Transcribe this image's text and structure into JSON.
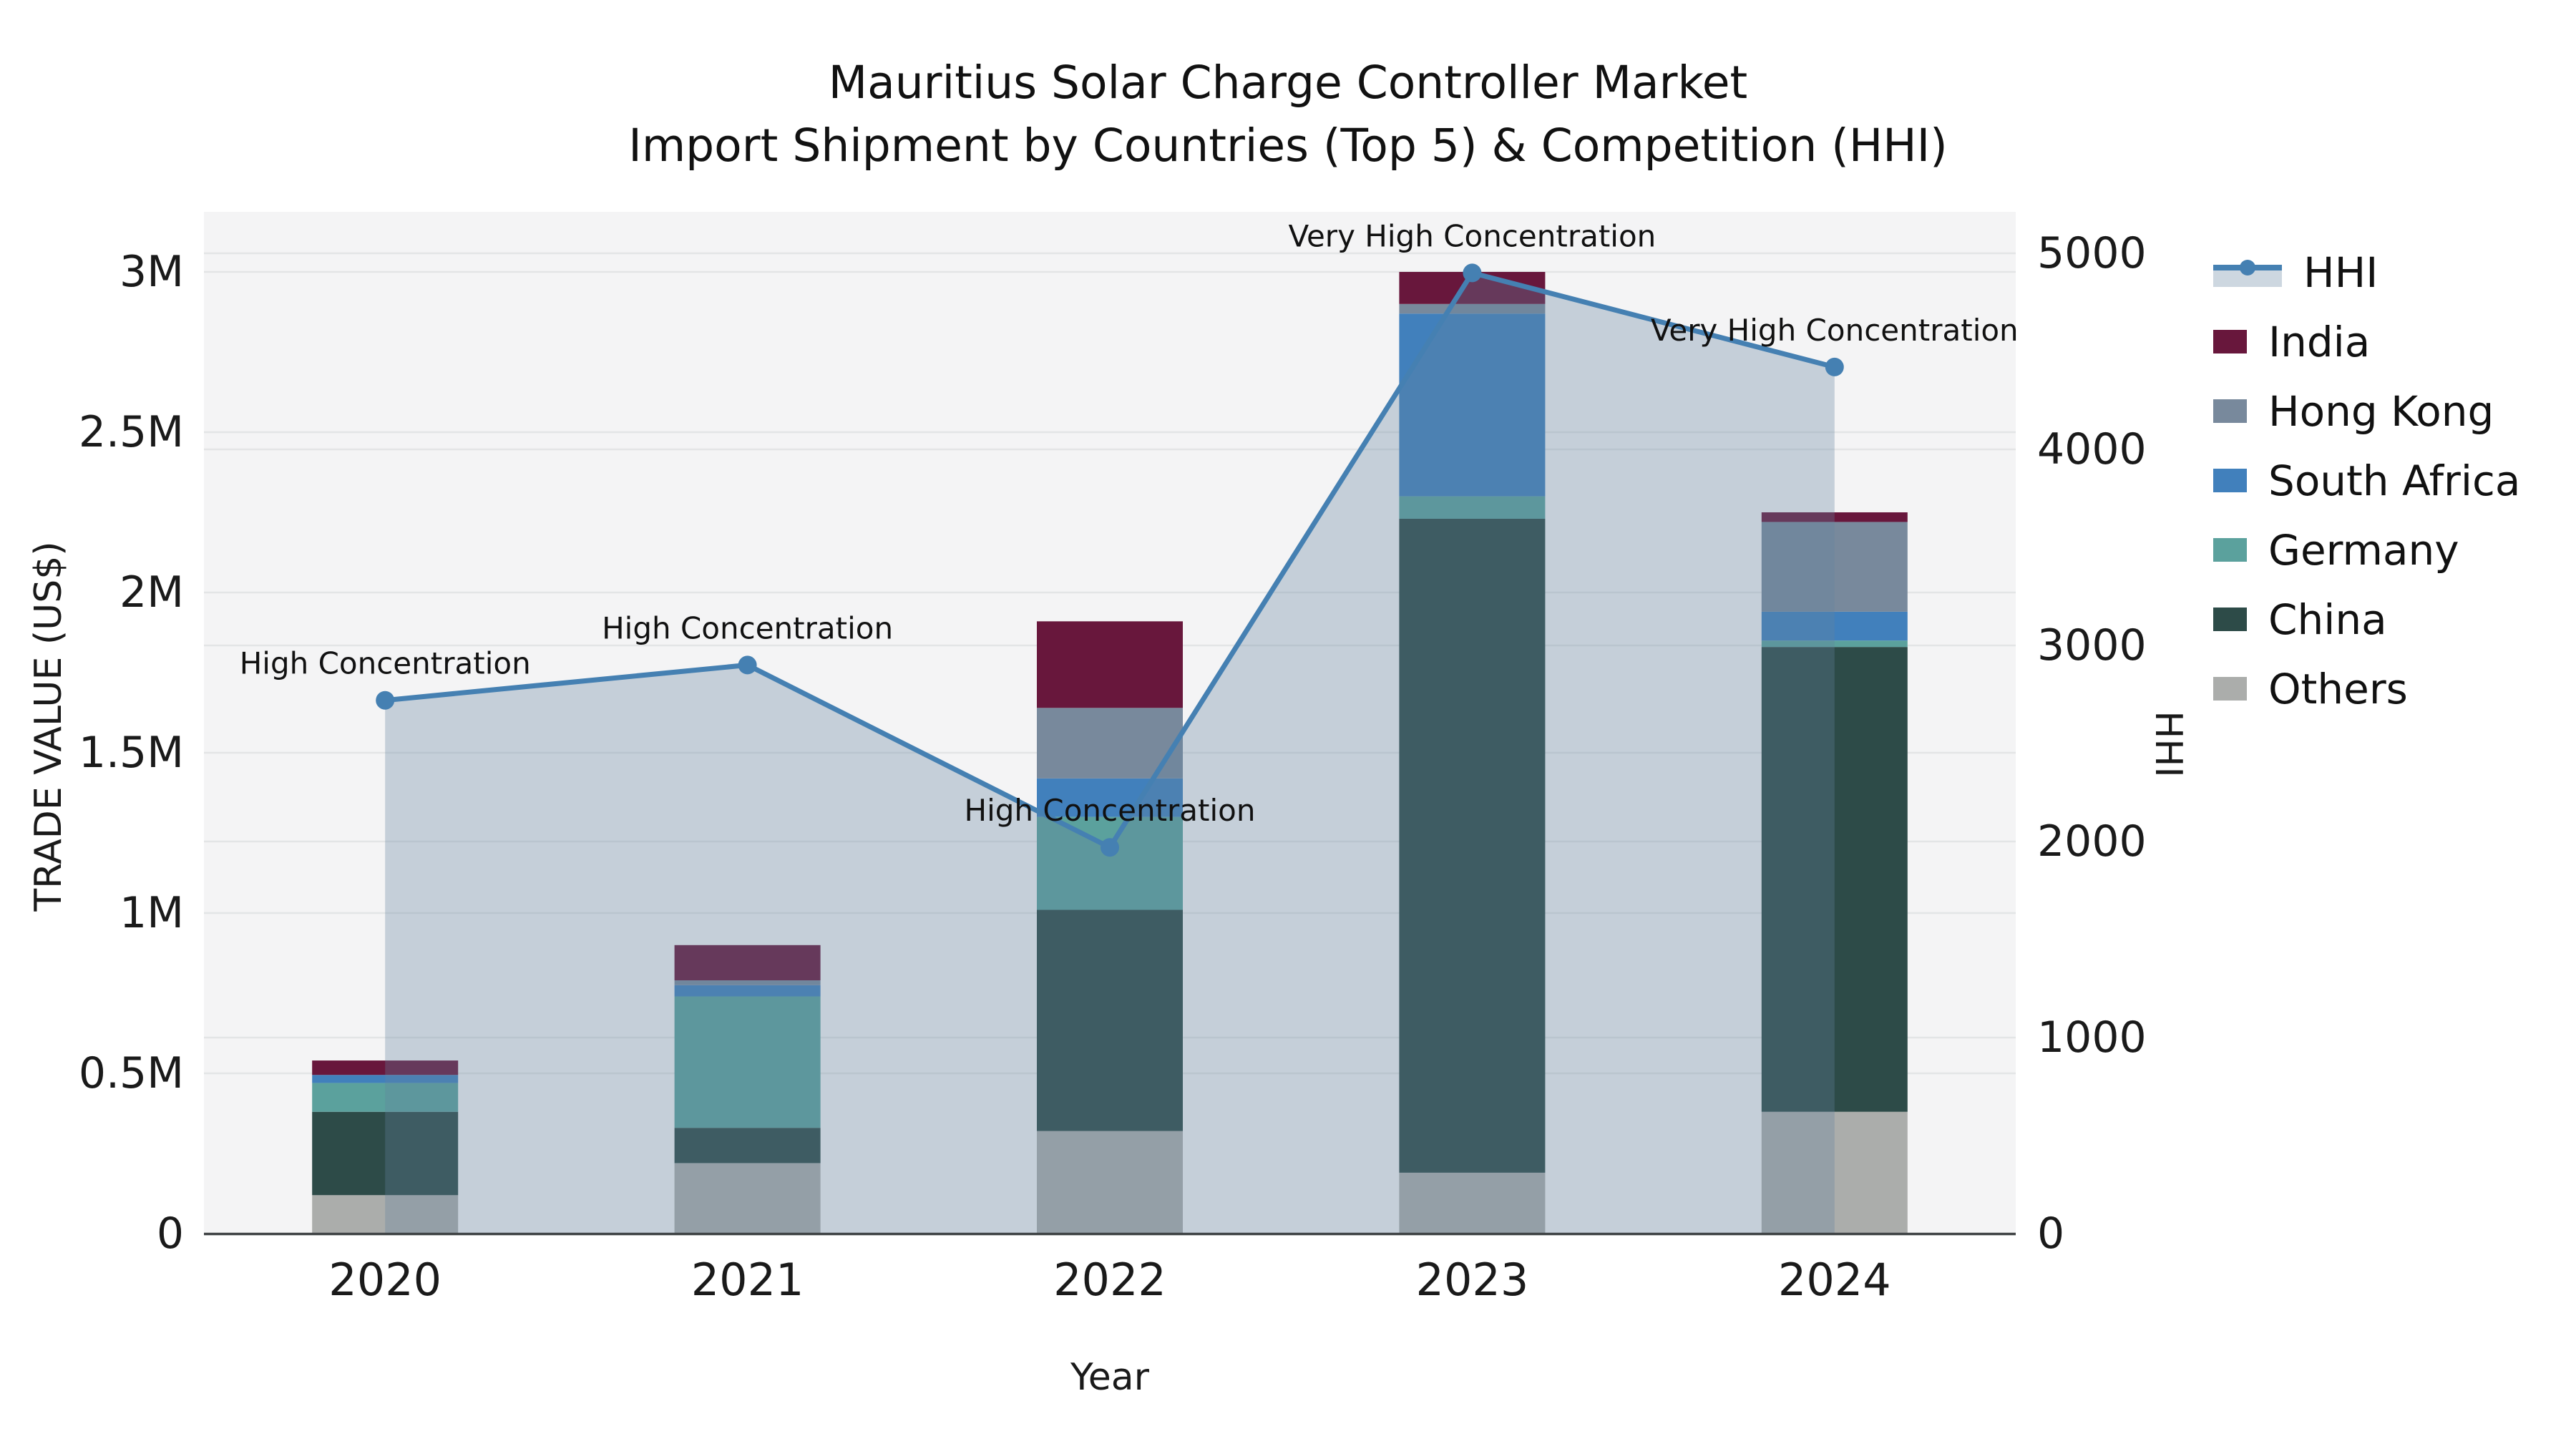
{
  "title": {
    "line1": "Mauritius Solar Charge Controller Market",
    "line2": "Import Shipment by Countries (Top 5) & Competition (HHI)"
  },
  "axes": {
    "x_label": "Year",
    "y_left_label": "TRADE VALUE (US$)",
    "y_right_label": "HHI",
    "x_ticks": [
      "2020",
      "2021",
      "2022",
      "2023",
      "2024"
    ],
    "y_left_ticks": [
      {
        "value": 0,
        "label": "0"
      },
      {
        "value": 500000,
        "label": "0.5M"
      },
      {
        "value": 1000000,
        "label": "1M"
      },
      {
        "value": 1500000,
        "label": "1.5M"
      },
      {
        "value": 2000000,
        "label": "2M"
      },
      {
        "value": 2500000,
        "label": "2.5M"
      },
      {
        "value": 3000000,
        "label": "3M"
      }
    ],
    "y_right_ticks": [
      {
        "value": 0,
        "label": "0"
      },
      {
        "value": 1000,
        "label": "1000"
      },
      {
        "value": 2000,
        "label": "2000"
      },
      {
        "value": 3000,
        "label": "3000"
      },
      {
        "value": 4000,
        "label": "4000"
      },
      {
        "value": 5000,
        "label": "5000"
      }
    ]
  },
  "legend": [
    {
      "id": "hhi",
      "label": "HHI",
      "type": "line",
      "color": "#4580b2"
    },
    {
      "id": "india",
      "label": "India",
      "type": "patch",
      "color": "#68173c"
    },
    {
      "id": "hong-kong",
      "label": "Hong Kong",
      "type": "patch",
      "color": "#78899c"
    },
    {
      "id": "south-africa",
      "label": "South Africa",
      "type": "patch",
      "color": "#4180bc"
    },
    {
      "id": "germany",
      "label": "Germany",
      "type": "patch",
      "color": "#5ba19d"
    },
    {
      "id": "china",
      "label": "China",
      "type": "patch",
      "color": "#2d4b48"
    },
    {
      "id": "others",
      "label": "Others",
      "type": "patch",
      "color": "#abadab"
    }
  ],
  "chart_data": {
    "type": "stacked-bar+line",
    "title": "Mauritius Solar Charge Controller Market — Import Shipment by Countries (Top 5) & Competition (HHI)",
    "xlabel": "Year",
    "ylabel_left": "TRADE VALUE (US$)",
    "ylabel_right": "HHI",
    "x": [
      "2020",
      "2021",
      "2022",
      "2023",
      "2024"
    ],
    "ylim_left": [
      0,
      3000000
    ],
    "ylim_right": [
      0,
      5000
    ],
    "grid": true,
    "legend_position": "right",
    "stack_order_bottom_to_top": [
      "Others",
      "China",
      "Germany",
      "South Africa",
      "Hong Kong",
      "India"
    ],
    "series": [
      {
        "name": "Others",
        "color": "#abadab",
        "values": [
          120000,
          220000,
          320000,
          190000,
          380000
        ]
      },
      {
        "name": "China",
        "color": "#2d4b48",
        "values": [
          260000,
          110000,
          690000,
          2040000,
          1450000
        ]
      },
      {
        "name": "Germany",
        "color": "#5ba19d",
        "values": [
          90000,
          410000,
          290000,
          70000,
          20000
        ]
      },
      {
        "name": "South Africa",
        "color": "#4180bc",
        "values": [
          25000,
          35000,
          120000,
          570000,
          90000
        ]
      },
      {
        "name": "Hong Kong",
        "color": "#78899c",
        "values": [
          0,
          15000,
          220000,
          30000,
          280000
        ]
      },
      {
        "name": "India",
        "color": "#68173c",
        "values": [
          45000,
          110000,
          270000,
          100000,
          30000
        ]
      }
    ],
    "bar_totals": [
      540000,
      900000,
      1910000,
      3000000,
      2250000
    ],
    "line": {
      "name": "HHI",
      "color": "#4580b2",
      "area_fill": "rgba(100,130,160,0.32)",
      "values": [
        2720,
        2900,
        1970,
        4900,
        4420
      ]
    },
    "annotations": [
      {
        "x": "2020",
        "text": "High Concentration"
      },
      {
        "x": "2021",
        "text": "High Concentration"
      },
      {
        "x": "2022",
        "text": "High Concentration"
      },
      {
        "x": "2023",
        "text": "Very High Concentration"
      },
      {
        "x": "2024",
        "text": "Very High Concentration"
      }
    ]
  }
}
